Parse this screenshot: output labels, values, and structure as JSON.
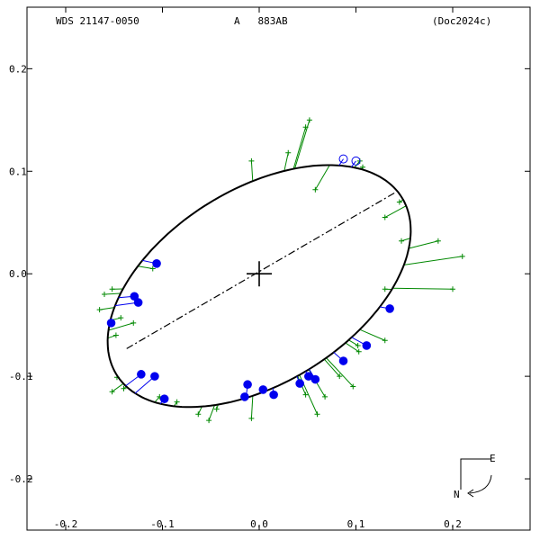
{
  "header": {
    "system": "WDS 21147-0050",
    "pair": "A   883AB",
    "reference": "(Doc2024c)"
  },
  "compass": {
    "east": "E",
    "north": "N"
  },
  "colors": {
    "orbit": "#000000",
    "measures": "#008800",
    "filled_points": "#0000ee",
    "open_points": "#0000ee",
    "line_of_nodes": "#000000"
  },
  "chart_data": {
    "type": "scatter",
    "title": "",
    "xlabel": "",
    "ylabel": "",
    "xlim": [
      -0.24,
      0.28
    ],
    "ylim": [
      -0.25,
      0.26
    ],
    "x_ticks": [
      -0.2,
      -0.1,
      0.0,
      0.1,
      0.2
    ],
    "x_tick_labels": [
      "-0.2",
      "-0.1",
      "0.0",
      "0.1",
      "0.2"
    ],
    "y_ticks": [
      0.2,
      0.1,
      0.0,
      -0.1,
      -0.2
    ],
    "y_tick_labels": [
      "0.2",
      "0.1",
      "0.0",
      "-0.1",
      "-0.2"
    ],
    "grid": false,
    "orbit_ellipse": {
      "center": [
        0.0,
        -0.012
      ],
      "semi_major": 0.171,
      "semi_minor": 0.096,
      "rotation_deg": 29
    },
    "primary": [
      0.0,
      0.0
    ],
    "line_of_nodes": [
      [
        -0.137,
        -0.073
      ],
      [
        0.142,
        0.08
      ]
    ],
    "filled_points": [
      [
        -0.106,
        0.01
      ],
      [
        -0.129,
        -0.022
      ],
      [
        -0.125,
        -0.028
      ],
      [
        -0.153,
        -0.048
      ],
      [
        -0.122,
        -0.098
      ],
      [
        -0.108,
        -0.1
      ],
      [
        -0.098,
        -0.122
      ],
      [
        -0.012,
        -0.108
      ],
      [
        -0.015,
        -0.12
      ],
      [
        0.004,
        -0.113
      ],
      [
        0.015,
        -0.118
      ],
      [
        0.042,
        -0.107
      ],
      [
        0.051,
        -0.1
      ],
      [
        0.058,
        -0.103
      ],
      [
        0.087,
        -0.085
      ],
      [
        0.111,
        -0.07
      ],
      [
        0.135,
        -0.034
      ]
    ],
    "open_points": [
      [
        0.087,
        0.112
      ],
      [
        0.1,
        0.11
      ]
    ],
    "measures": [
      [
        -0.11,
        0.005
      ],
      [
        -0.152,
        -0.015
      ],
      [
        -0.16,
        -0.02
      ],
      [
        -0.165,
        -0.035
      ],
      [
        -0.148,
        -0.06
      ],
      [
        -0.143,
        -0.043
      ],
      [
        -0.13,
        -0.048
      ],
      [
        -0.147,
        -0.101
      ],
      [
        -0.14,
        -0.112
      ],
      [
        -0.152,
        -0.115
      ],
      [
        -0.103,
        -0.12
      ],
      [
        -0.085,
        -0.125
      ],
      [
        -0.063,
        -0.137
      ],
      [
        -0.052,
        -0.143
      ],
      [
        -0.044,
        -0.132
      ],
      [
        -0.008,
        -0.141
      ],
      [
        0.048,
        -0.118
      ],
      [
        0.06,
        -0.137
      ],
      [
        0.068,
        -0.12
      ],
      [
        0.083,
        -0.1
      ],
      [
        0.097,
        -0.11
      ],
      [
        0.102,
        -0.07
      ],
      [
        0.103,
        -0.076
      ],
      [
        0.13,
        -0.065
      ],
      [
        0.13,
        -0.015
      ],
      [
        0.2,
        -0.015
      ],
      [
        0.21,
        0.017
      ],
      [
        0.185,
        0.032
      ],
      [
        0.147,
        0.032
      ],
      [
        0.13,
        0.055
      ],
      [
        0.145,
        0.07
      ],
      [
        0.104,
        0.11
      ],
      [
        0.107,
        0.104
      ],
      [
        0.03,
        0.118
      ],
      [
        -0.008,
        0.11
      ],
      [
        0.058,
        0.082
      ],
      [
        0.052,
        0.15
      ],
      [
        0.048,
        0.143
      ]
    ]
  }
}
